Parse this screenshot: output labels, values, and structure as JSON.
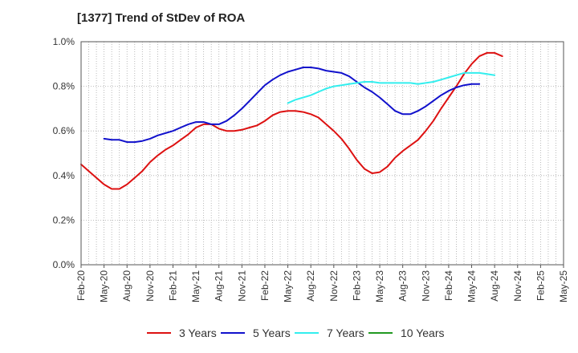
{
  "chart_data": {
    "type": "line",
    "title": "[1377]  Trend of StDev of ROA",
    "xlabel": "",
    "ylabel": "",
    "x_ticks": [
      "Feb-20",
      "May-20",
      "Aug-20",
      "Nov-20",
      "Feb-21",
      "May-21",
      "Aug-21",
      "Nov-21",
      "Feb-22",
      "May-22",
      "Aug-22",
      "Nov-22",
      "Feb-23",
      "May-23",
      "Aug-23",
      "Nov-23",
      "Feb-24",
      "May-24",
      "Aug-24",
      "Nov-24",
      "Feb-25",
      "May-25"
    ],
    "y_ticks": [
      "0.0%",
      "0.2%",
      "0.4%",
      "0.6%",
      "0.8%",
      "1.0%"
    ],
    "ylim": [
      0,
      1.0
    ],
    "y_unit": "%",
    "grid": "dotted",
    "legend_position": "bottom",
    "series": [
      {
        "name": "3 Years",
        "color": "#dd1111",
        "start_index": 0,
        "values": [
          0.45,
          0.42,
          0.39,
          0.36,
          0.34,
          0.34,
          0.36,
          0.39,
          0.42,
          0.46,
          0.49,
          0.515,
          0.535,
          0.56,
          0.585,
          0.615,
          0.63,
          0.63,
          0.61,
          0.6,
          0.6,
          0.605,
          0.615,
          0.625,
          0.645,
          0.67,
          0.685,
          0.69,
          0.69,
          0.685,
          0.675,
          0.66,
          0.63,
          0.6,
          0.565,
          0.52,
          0.47,
          0.43,
          0.41,
          0.415,
          0.44,
          0.48,
          0.51,
          0.535,
          0.56,
          0.6,
          0.645,
          0.7,
          0.75,
          0.8,
          0.855,
          0.9,
          0.935,
          0.95,
          0.95,
          0.935
        ]
      },
      {
        "name": "5 Years",
        "color": "#1111cc",
        "start_index": 3,
        "values": [
          0.565,
          0.56,
          0.56,
          0.55,
          0.55,
          0.555,
          0.565,
          0.58,
          0.59,
          0.6,
          0.615,
          0.63,
          0.64,
          0.64,
          0.63,
          0.63,
          0.645,
          0.67,
          0.7,
          0.735,
          0.77,
          0.805,
          0.83,
          0.85,
          0.865,
          0.875,
          0.885,
          0.885,
          0.88,
          0.87,
          0.865,
          0.86,
          0.845,
          0.82,
          0.795,
          0.775,
          0.75,
          0.72,
          0.69,
          0.675,
          0.675,
          0.69,
          0.71,
          0.735,
          0.76,
          0.78,
          0.795,
          0.805,
          0.81,
          0.81
        ]
      },
      {
        "name": "7 Years",
        "color": "#33eeee",
        "start_index": 27,
        "values": [
          0.725,
          0.74,
          0.75,
          0.76,
          0.775,
          0.79,
          0.8,
          0.805,
          0.81,
          0.815,
          0.82,
          0.82,
          0.815,
          0.815,
          0.815,
          0.815,
          0.815,
          0.81,
          0.815,
          0.82,
          0.83,
          0.84,
          0.85,
          0.86,
          0.86,
          0.86,
          0.855,
          0.85
        ]
      },
      {
        "name": "10 Years",
        "color": "#229922",
        "start_index": 0,
        "values": []
      }
    ]
  }
}
